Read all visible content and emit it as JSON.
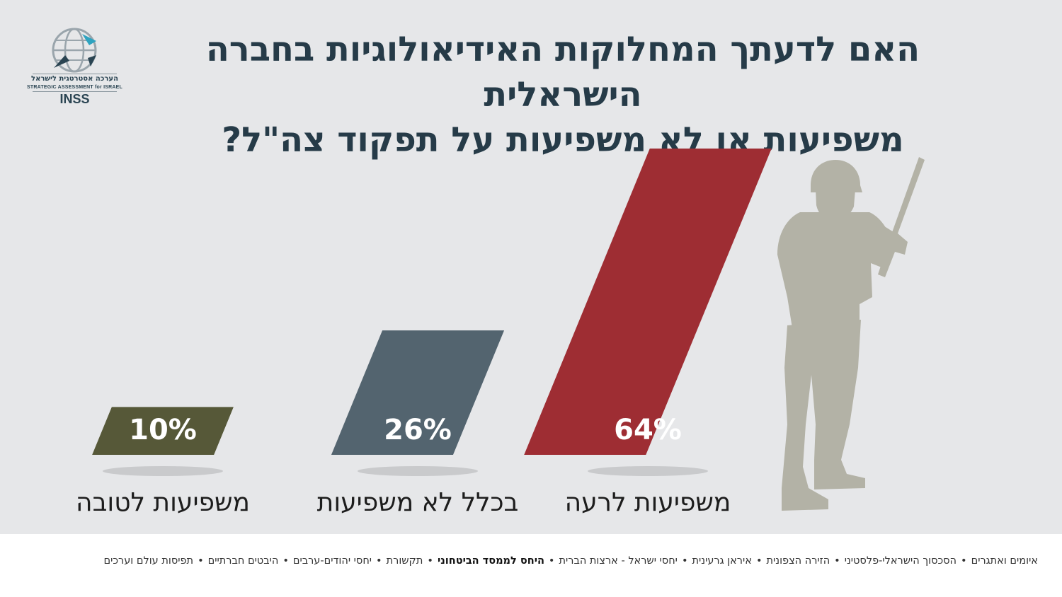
{
  "title": {
    "line1": "האם לדעתך המחלוקות האידיאולוגיות בחברה הישראלית",
    "line2": "משפיעות או לא משפיעות על תפקוד צה\"ל?"
  },
  "logo": {
    "hebrew": "הערכה אסטרטגית לישראל",
    "english": "STRATEGIC ASSESSMENT for ISRAEL",
    "brand": "INSS"
  },
  "chart_data": {
    "type": "bar",
    "categories": [
      "משפיעות לטובה",
      "בכלל לא משפיעות",
      "משפיעות לרעה"
    ],
    "values": [
      10,
      26,
      64
    ],
    "value_labels": [
      "10%",
      "26%",
      "64%"
    ],
    "colors": [
      "#565838",
      "#53646f",
      "#9e2d33"
    ],
    "ylim": [
      0,
      64
    ],
    "grid": false,
    "legend": "none"
  },
  "topics": {
    "items": [
      "איומים ואתגרים",
      "הסכסוך הישראלי-פלסטיני",
      "הזירה הצפונית",
      "איראן גרעינית",
      "יחסי ישראל - ארצות הברית",
      "היחס לממסד הביטחוני",
      "תקשורת",
      "יחסי יהודים-ערבים",
      "היבטים חברתיים",
      "תפיסות עולם וערכים"
    ],
    "active_index": 5,
    "separator": "•"
  },
  "decor": {
    "icon": "soldier-silhouette-icon",
    "color": "#b3b2a6"
  }
}
